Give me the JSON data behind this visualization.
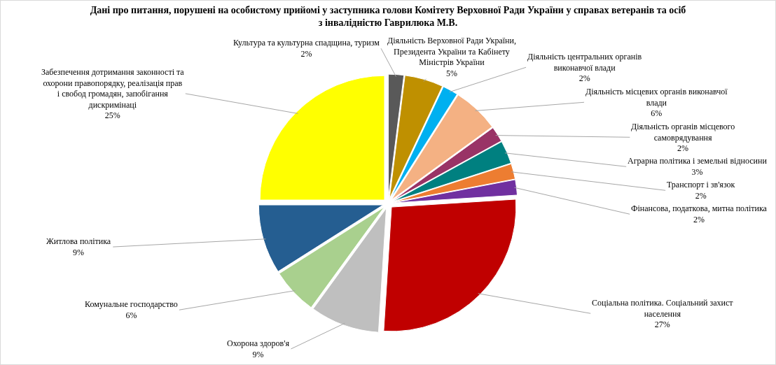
{
  "chart_data": {
    "type": "pie",
    "title": "Дані про питання, порушені на особистому прийомі у заступника голови Комітету Верховної Ради України у справах ветеранів та осіб з інвалідністю Гаврилюка М.В.",
    "categories": [
      "Культура та культурна спадщина, туризм",
      "Діяльність Верховної Ради України, Президента України та Кабінету Міністрів України",
      "Діяльність центральних органів виконавчої влади",
      "Діяльність місцевих органів виконавчої влади",
      "Діяльність органів місцевого самоврядування",
      "Аграрна політика і земельні відносини",
      "Транспорт і зв'язок",
      "Фінансова, податкова, митна політика",
      "Соціальна політика. Соціальний захист населення",
      "Охорона здоров'я",
      "Комунальне господарство",
      "Житлова політика",
      "Забезпечення дотримання законності та охорони правопорядку, реалізація прав і свобод громадян, запобігання дискримінаці"
    ],
    "values": [
      2,
      5,
      2,
      6,
      2,
      3,
      2,
      2,
      27,
      9,
      6,
      9,
      25
    ],
    "value_labels": [
      "2%",
      "5%",
      "2%",
      "6%",
      "2%",
      "3%",
      "2%",
      "2%",
      "27%",
      "9%",
      "6%",
      "9%",
      "25%"
    ],
    "colors": [
      "#595959",
      "#bf9000",
      "#00b0f0",
      "#f4b183",
      "#993366",
      "#008080",
      "#ed7d31",
      "#7030a0",
      "#c00000",
      "#bfbfbf",
      "#a9d08e",
      "#255e91",
      "#ffff00"
    ]
  }
}
